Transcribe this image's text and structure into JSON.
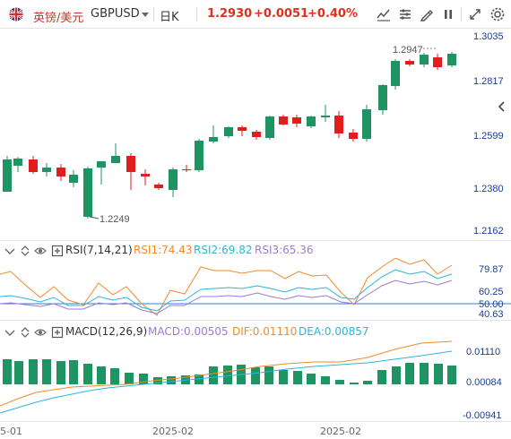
{
  "toolbar": {
    "symbol_name": "英镑/美元",
    "symbol_code": "GBPUSD",
    "interval": "日K",
    "last_price": "1.2930",
    "change": "+0.0051",
    "change_pct": "+0.40%",
    "icons": [
      "indicator-icon",
      "compare-icon",
      "drawing-icon",
      "pause-icon",
      "expand-icon",
      "settings-icon"
    ]
  },
  "main_chart": {
    "price_labels": [
      "1.3035",
      "1.2817",
      "1.2599",
      "1.2380",
      "1.2162"
    ],
    "high_label": "1.2947",
    "low_label": "1.2249",
    "up_color": "#1e9463",
    "down_color": "#e01e1e"
  },
  "rsi": {
    "name": "RSI(7,14,21)",
    "rsi1": "RSI1:74.43",
    "rsi2": "RSI2:69.82",
    "rsi3": "RSI3:65.36",
    "axis_labels": [
      "79.87",
      "60.25",
      "50.00",
      "40.63"
    ],
    "colors": {
      "rsi1": "#f08a2c",
      "rsi2": "#2eb4d6",
      "rsi3": "#9b7ad6",
      "midline": "#2f7fd8"
    }
  },
  "macd": {
    "name": "MACD(12,26,9)",
    "macd": "MACD:0.00505",
    "dif": "DIF:0.01110",
    "dea": "DEA:0.00857",
    "axis_labels": [
      "0.01110",
      "0.00084",
      "-0.00941"
    ],
    "colors": {
      "macd": "#1e9463",
      "dif": "#f08a2c",
      "dea": "#2eb4d6"
    }
  },
  "time_axis": {
    "labels": [
      "5-01",
      "2025-02",
      "2025-02"
    ]
  }
}
